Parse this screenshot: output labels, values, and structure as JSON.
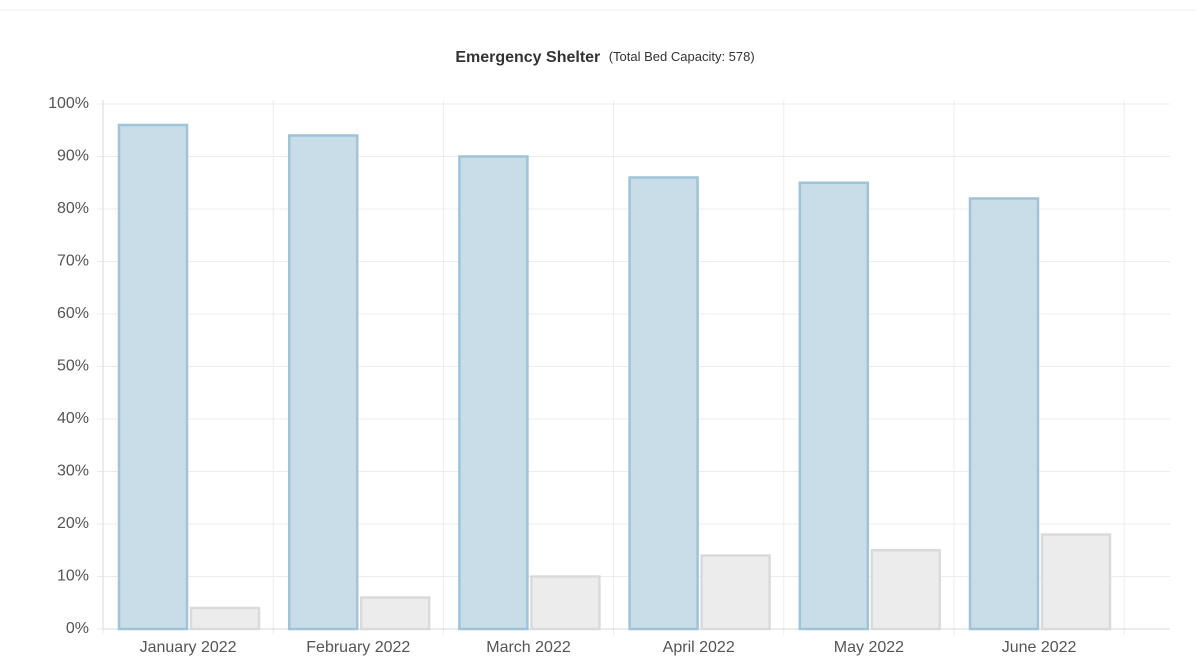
{
  "chart_data": {
    "type": "bar",
    "title": "Emergency Shelter",
    "subtitle": "(Total Bed Capacity: 578)",
    "categories": [
      "January 2022",
      "February 2022",
      "March 2022",
      "April 2022",
      "May 2022",
      "June 2022"
    ],
    "series": [
      {
        "color": "#c8dde8",
        "stroke": "#9ec4d6",
        "values": [
          96,
          94,
          90,
          86,
          85,
          82
        ]
      },
      {
        "color": "#ececec",
        "stroke": "#dadada",
        "values": [
          4,
          6,
          10,
          14,
          15,
          18
        ]
      }
    ],
    "ylim": [
      0,
      100
    ],
    "yticks": [
      {
        "value": 0,
        "label": "0%"
      },
      {
        "value": 10,
        "label": "10%"
      },
      {
        "value": 20,
        "label": "20%"
      },
      {
        "value": 30,
        "label": "30%"
      },
      {
        "value": 40,
        "label": "40%"
      },
      {
        "value": 50,
        "label": "50%"
      },
      {
        "value": 60,
        "label": "60%"
      },
      {
        "value": 70,
        "label": "70%"
      },
      {
        "value": 80,
        "label": "80%"
      },
      {
        "value": 90,
        "label": "90%"
      },
      {
        "value": 100,
        "label": "100%"
      }
    ],
    "grid": true
  }
}
